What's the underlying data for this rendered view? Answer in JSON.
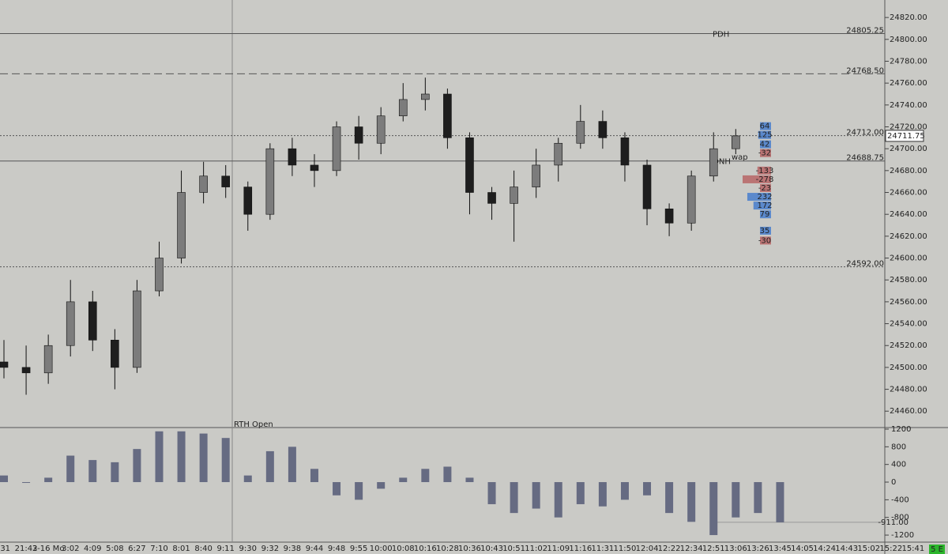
{
  "chart_data": [
    {
      "type": "candlestick",
      "categories": [
        ":31",
        "21:42",
        "3-16 Mo",
        "3:02",
        "4:09",
        "5:08",
        "6:27",
        "7:10",
        "8:01",
        "8:40",
        "9:11",
        "9:30",
        "9:32",
        "9:38",
        "9:44",
        "9:48",
        "9:55",
        "10:00",
        "10:08",
        "10:16",
        "10:28",
        "10:36",
        "10:43",
        "10:51",
        "11:02",
        "11:09",
        "11:16",
        "11:31",
        "11:50",
        "12:04",
        "12:22",
        "12:34",
        "12:51",
        "13:06",
        "13:26",
        "13:45",
        "14:05",
        "14:24",
        "14:43",
        "15:02",
        "15:22",
        "15:41"
      ],
      "open": [
        24505,
        24500,
        24495,
        24520,
        24560,
        24525,
        24500,
        24570,
        24600,
        24660,
        24675,
        24665,
        24640,
        24700,
        24685,
        24680,
        24720,
        24705,
        24730,
        24745,
        24750,
        24710,
        24660,
        24650,
        24665,
        24685,
        24705,
        24725,
        24710,
        24685,
        24645,
        24632,
        24675,
        24700,
        null,
        null,
        null,
        null,
        null,
        null,
        null,
        null
      ],
      "high": [
        24525,
        24520,
        24530,
        24580,
        24570,
        24535,
        24580,
        24615,
        24680,
        24688,
        24685,
        24670,
        24705,
        24710,
        24695,
        24725,
        24730,
        24738,
        24760,
        24765,
        24755,
        24715,
        24665,
        24680,
        24700,
        24710,
        24740,
        24735,
        24715,
        24690,
        24650,
        24680,
        24715,
        24718,
        null,
        null,
        null,
        null,
        null,
        null,
        null,
        null
      ],
      "low": [
        24490,
        24475,
        24485,
        24510,
        24515,
        24480,
        24495,
        24565,
        24595,
        24650,
        24655,
        24625,
        24635,
        24675,
        24665,
        24675,
        24690,
        24695,
        24725,
        24735,
        24700,
        24640,
        24635,
        24615,
        24655,
        24670,
        24700,
        24700,
        24670,
        24630,
        24620,
        24625,
        24670,
        24695,
        null,
        null,
        null,
        null,
        null,
        null,
        null,
        null
      ],
      "close": [
        24500,
        24495,
        24520,
        24560,
        24525,
        24500,
        24570,
        24600,
        24660,
        24675,
        24665,
        24640,
        24700,
        24685,
        24680,
        24720,
        24705,
        24730,
        24745,
        24750,
        24710,
        24660,
        24650,
        24665,
        24685,
        24705,
        24725,
        24710,
        24685,
        24645,
        24632,
        24675,
        24700,
        24711.75,
        null,
        null,
        null,
        null,
        null,
        null,
        null,
        null
      ],
      "ylim": [
        24445,
        24836
      ],
      "yticks": [
        {
          "value": 24460,
          "label": "24460.00"
        },
        {
          "value": 24480,
          "label": "24480.00"
        },
        {
          "value": 24500,
          "label": "24500.00"
        },
        {
          "value": 24520,
          "label": "24520.00"
        },
        {
          "value": 24540,
          "label": "24540.00"
        },
        {
          "value": 24560,
          "label": "24560.00"
        },
        {
          "value": 24580,
          "label": "24580.00"
        },
        {
          "value": 24600,
          "label": "24600.00"
        },
        {
          "value": 24620,
          "label": "24620.00"
        },
        {
          "value": 24640,
          "label": "24640.00"
        },
        {
          "value": 24660,
          "label": "24660.00"
        },
        {
          "value": 24680,
          "label": "24680.00"
        },
        {
          "value": 24700,
          "label": "24700.00"
        },
        {
          "value": 24720,
          "label": "24720.00"
        },
        {
          "value": 24740,
          "label": "24740.00"
        },
        {
          "value": 24760,
          "label": "24760.00"
        },
        {
          "value": 24780,
          "label": "24780.00"
        },
        {
          "value": 24800,
          "label": "24800.00"
        },
        {
          "value": 24820,
          "label": "24820.00"
        }
      ],
      "levels": [
        {
          "value": 24805.25,
          "label": "24805.25",
          "name": "PDH",
          "style": "solid"
        },
        {
          "value": 24768.5,
          "label": "24768.50",
          "style": "dashed"
        },
        {
          "value": 24712,
          "label": "24712.00",
          "style": "dotted"
        },
        {
          "value": 24688.75,
          "label": "24688.75",
          "name": "ONH",
          "style": "solid"
        },
        {
          "value": 24592,
          "label": "24592.00",
          "style": "dotted"
        }
      ],
      "last_price": 24711.75,
      "annotations": [
        "RTH Open",
        "wap"
      ],
      "delta_ladder": {
        "prices": [
          24720.6,
          24712.6,
          24704,
          24696,
          24680,
          24672,
          24664,
          24656,
          24648,
          24640,
          24625,
          24616
        ],
        "values": [
          64,
          125,
          42,
          -32,
          -133,
          -278,
          -23,
          232,
          172,
          79,
          35,
          -30
        ]
      },
      "colors": {
        "up": "#7c7c7c",
        "down": "#1e1e1e"
      }
    },
    {
      "type": "oscillator",
      "values": [
        150,
        0,
        100,
        600,
        500,
        450,
        750,
        1150,
        1150,
        1100,
        1000,
        150,
        700,
        800,
        300,
        -300,
        -400,
        -150,
        100,
        300,
        350,
        100,
        -500,
        -700,
        -600,
        -800,
        -500,
        -550,
        -400,
        -300,
        -700,
        -900,
        -1200,
        -800,
        -700,
        -911,
        null,
        null,
        null,
        null,
        null,
        null
      ],
      "ylim": [
        -1360,
        1200
      ],
      "yticks": [
        -1200,
        -800,
        -400,
        0,
        400,
        800,
        1200
      ],
      "last_label": {
        "value": -911,
        "label": "-911.00"
      },
      "color": "#666b82"
    }
  ],
  "status_badge": "5 E"
}
